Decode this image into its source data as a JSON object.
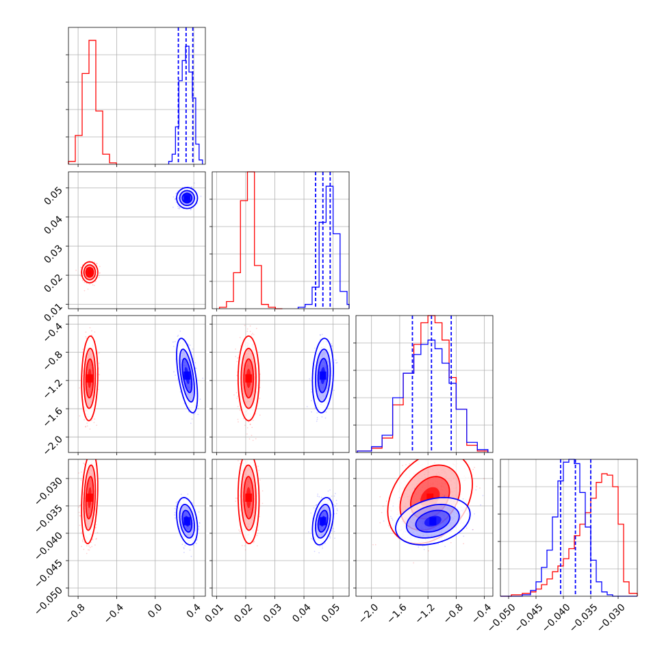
{
  "colors": {
    "red": "#ff0000",
    "blue": "#0000ff"
  },
  "chart_data": {
    "type": "corner",
    "grid": true,
    "parameters": [
      {
        "ticks": [
          "−0.8",
          "−0.4",
          "0.0",
          "0.4"
        ],
        "tick_values": [
          -0.8,
          -0.4,
          0.0,
          0.4
        ],
        "range": [
          -0.9,
          0.52
        ]
      },
      {
        "ticks": [
          "0.01",
          "0.02",
          "0.03",
          "0.04",
          "0.05"
        ],
        "tick_values": [
          0.01,
          0.02,
          0.03,
          0.04,
          0.05
        ],
        "range": [
          0.0085,
          0.0555
        ]
      },
      {
        "ticks": [
          "−2.0",
          "−1.6",
          "−1.2",
          "−0.8",
          "−0.4"
        ],
        "tick_values": [
          -2.0,
          -1.6,
          -1.2,
          -0.8,
          -0.4
        ],
        "range": [
          -2.22,
          -0.28
        ]
      },
      {
        "ticks": [
          "−0.050",
          "−0.045",
          "−0.040",
          "−0.035",
          "−0.030"
        ],
        "tick_values": [
          -0.05,
          -0.045,
          -0.04,
          -0.035,
          -0.03
        ],
        "range": [
          -0.0515,
          -0.0265
        ]
      }
    ],
    "distributions": [
      {
        "color": "red",
        "means": [
          -0.68,
          0.021,
          -1.17,
          -0.0335
        ],
        "sds": [
          0.035,
          0.0015,
          0.25,
          0.0035
        ],
        "quantiles": null
      },
      {
        "color": "blue",
        "means": [
          0.33,
          0.0465,
          -1.13,
          -0.0378
        ],
        "sds": [
          0.045,
          0.0015,
          0.22,
          0.0018
        ],
        "quantiles": [
          [
            0.24,
            0.32,
            0.39
          ],
          [
            0.044,
            0.0465,
            0.049
          ],
          [
            -1.42,
            -1.15,
            -0.87
          ],
          [
            -0.0405,
            -0.0378,
            -0.035
          ]
        ]
      }
    ],
    "histograms": [
      {
        "red": {
          "edges": [
            -0.9,
            -0.829,
            -0.758,
            -0.687,
            -0.616,
            -0.545,
            -0.474,
            -0.403
          ],
          "counts": [
            0.02,
            0.2,
            0.63,
            0.86,
            0.37,
            0.07,
            0.01
          ]
        },
        "blue": {
          "edges": [
            0.14,
            0.175,
            0.21,
            0.245,
            0.28,
            0.315,
            0.35,
            0.385,
            0.42,
            0.455,
            0.49
          ],
          "counts": [
            0.02,
            0.07,
            0.26,
            0.58,
            0.72,
            0.82,
            0.64,
            0.46,
            0.14,
            0.03
          ]
        }
      },
      {
        "red": {
          "edges": [
            0.011,
            0.0134,
            0.0158,
            0.0182,
            0.0206,
            0.023,
            0.0254,
            0.0278,
            0.0302,
            0.0326
          ],
          "counts": [
            0.01,
            0.05,
            0.25,
            0.75,
            0.95,
            0.3,
            0.03,
            0.01,
            0.0
          ]
        },
        "blue": {
          "edges": [
            0.038,
            0.0404,
            0.0428,
            0.0452,
            0.0476,
            0.05,
            0.0524,
            0.0548,
            0.0555
          ],
          "counts": [
            0.01,
            0.03,
            0.15,
            0.6,
            0.85,
            0.52,
            0.12,
            0.03
          ]
        }
      },
      {
        "red": {
          "edges": [
            -2.2,
            -2.0,
            -1.85,
            -1.7,
            -1.55,
            -1.4,
            -1.3,
            -1.2,
            -1.1,
            -1.0,
            -0.9,
            -0.8,
            -0.65,
            -0.5,
            -0.35
          ],
          "counts": [
            0.01,
            0.03,
            0.1,
            0.33,
            0.55,
            0.75,
            0.9,
            0.96,
            0.9,
            0.78,
            0.52,
            0.3,
            0.05,
            0.01
          ]
        },
        "blue": {
          "edges": [
            -2.2,
            -2.0,
            -1.85,
            -1.7,
            -1.55,
            -1.4,
            -1.3,
            -1.2,
            -1.1,
            -1.0,
            -0.9,
            -0.8,
            -0.65,
            -0.5,
            -0.35
          ],
          "counts": [
            0.01,
            0.04,
            0.12,
            0.38,
            0.55,
            0.68,
            0.75,
            0.78,
            0.72,
            0.62,
            0.48,
            0.3,
            0.07,
            0.02
          ]
        }
      },
      {
        "red": {
          "edges": [
            -0.0515,
            -0.0495,
            -0.0475,
            -0.046,
            -0.045,
            -0.044,
            -0.043,
            -0.042,
            -0.041,
            -0.04,
            -0.039,
            -0.038,
            -0.037,
            -0.036,
            -0.035,
            -0.034,
            -0.033,
            -0.032,
            -0.031,
            -0.03,
            -0.029,
            -0.028,
            -0.0265
          ],
          "counts": [
            0.0,
            0.01,
            0.02,
            0.03,
            0.05,
            0.08,
            0.12,
            0.17,
            0.21,
            0.26,
            0.33,
            0.42,
            0.5,
            0.58,
            0.68,
            0.79,
            0.85,
            0.84,
            0.76,
            0.5,
            0.1,
            0.02
          ]
        },
        "blue": {
          "edges": [
            -0.0515,
            -0.0495,
            -0.0475,
            -0.046,
            -0.045,
            -0.044,
            -0.043,
            -0.042,
            -0.041,
            -0.04,
            -0.039,
            -0.038,
            -0.037,
            -0.036,
            -0.035,
            -0.034,
            -0.033,
            -0.032,
            -0.031,
            -0.03,
            -0.0265
          ],
          "counts": [
            0.0,
            0.0,
            0.01,
            0.04,
            0.1,
            0.2,
            0.32,
            0.55,
            0.8,
            0.93,
            0.96,
            0.92,
            0.72,
            0.48,
            0.25,
            0.1,
            0.03,
            0.01,
            0.0,
            0.0
          ]
        }
      }
    ],
    "hist_ylim": [
      0,
      0.95
    ]
  }
}
